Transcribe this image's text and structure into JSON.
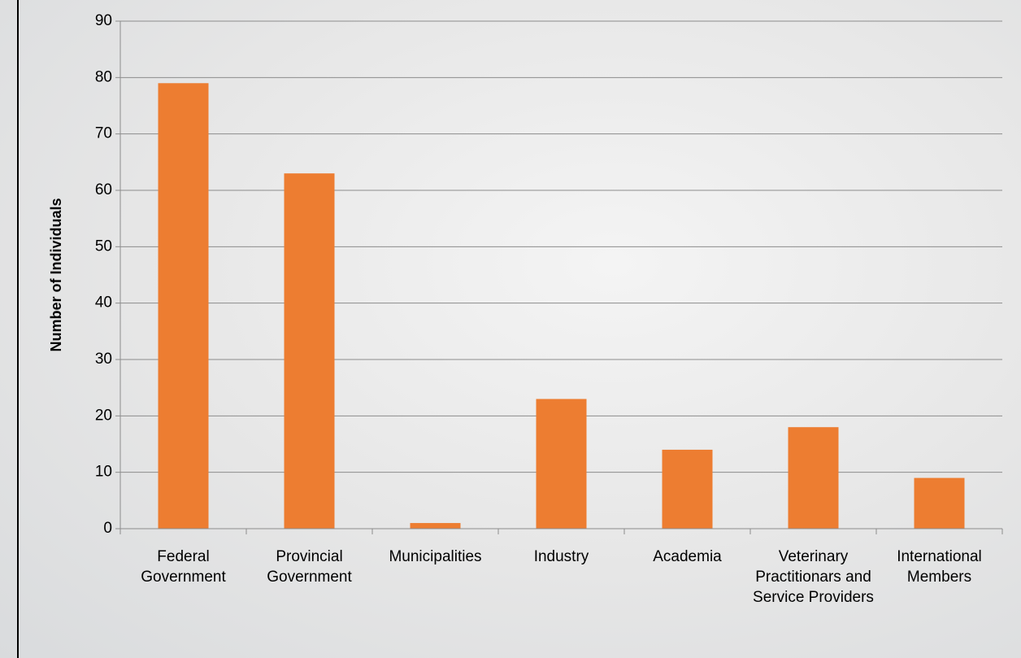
{
  "chart_data": {
    "type": "bar",
    "y_label": "Number of Individuals",
    "categories": [
      "Federal Government",
      "Provincial Government",
      "Municipalities",
      "Industry",
      "Academia",
      "Veterinary Practitionars and Service Providers",
      "International Members"
    ],
    "values": [
      79,
      63,
      1,
      23,
      14,
      18,
      9
    ],
    "color": "#ed7d31",
    "ylim": [
      0,
      90
    ],
    "yticks": [
      0,
      10,
      20,
      30,
      40,
      50,
      60,
      70,
      80,
      90
    ],
    "grid": true
  }
}
